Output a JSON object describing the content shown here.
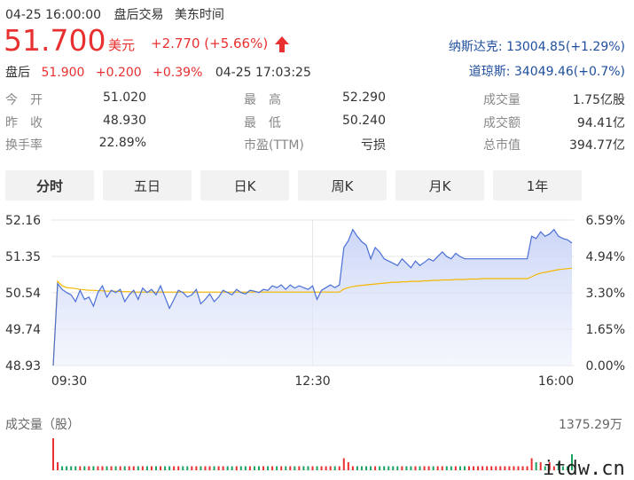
{
  "header": {
    "datetime": "04-25 16:00:00",
    "session": "盘后交易",
    "tz": "美东时间"
  },
  "quote": {
    "price": "51.700",
    "currency": "美元",
    "change": "+2.770 (+5.66%)"
  },
  "after_hours": {
    "label": "盘后",
    "price": "51.900",
    "change": "+0.200",
    "pct": "+0.39%",
    "time": "04-25 17:03:25"
  },
  "indices": [
    {
      "name": "纳斯达克:",
      "value": "13004.85(+1.29%)"
    },
    {
      "name": "道琼斯:",
      "value": "34049.46(+0.7%)"
    }
  ],
  "stats": {
    "col1": [
      {
        "label": "今　开",
        "value": "51.020",
        "red": true
      },
      {
        "label": "昨　收",
        "value": "48.930",
        "red": false
      },
      {
        "label": "换手率",
        "value": "22.89%",
        "red": false
      }
    ],
    "col2": [
      {
        "label": "最　高",
        "value": "52.290",
        "red": true
      },
      {
        "label": "最　低",
        "value": "50.240",
        "red": true
      },
      {
        "label": "市盈(TTM)",
        "value": "亏损",
        "red": false
      }
    ],
    "col3": [
      {
        "label": "成交量",
        "value": "1.75亿股"
      },
      {
        "label": "成交额",
        "value": "94.41亿"
      },
      {
        "label": "总市值",
        "value": "394.77亿"
      }
    ]
  },
  "tabs": [
    "分时",
    "五日",
    "日K",
    "周K",
    "月K",
    "1年"
  ],
  "volume": {
    "label": "成交量（股）",
    "max": "1375.29万"
  },
  "watermark": "itdw.cn",
  "chart_data": {
    "type": "line",
    "y_ticks": [
      "52.16",
      "51.35",
      "50.54",
      "49.74",
      "48.93"
    ],
    "y_pct_ticks": [
      "6.59%",
      "4.94%",
      "3.30%",
      "1.65%",
      "0.00%"
    ],
    "x_ticks": [
      "09:30",
      "12:30",
      "16:00"
    ],
    "ylim": [
      48.93,
      52.16
    ],
    "series": [
      {
        "name": "",
        "color": "#4a6fd6",
        "values": [
          48.93,
          50.75,
          50.62,
          50.55,
          50.5,
          50.35,
          50.6,
          50.4,
          50.45,
          50.25,
          50.55,
          50.7,
          50.45,
          50.6,
          50.55,
          50.62,
          50.35,
          50.5,
          50.6,
          50.4,
          50.65,
          50.55,
          50.62,
          50.5,
          50.7,
          50.45,
          50.2,
          50.4,
          50.6,
          50.55,
          50.45,
          50.5,
          50.62,
          50.3,
          50.4,
          50.52,
          50.35,
          50.45,
          50.6,
          50.55,
          50.5,
          50.62,
          50.55,
          50.52,
          50.6,
          50.58,
          50.55,
          50.62,
          50.6,
          50.7,
          50.66,
          50.72,
          50.62,
          50.72,
          50.65,
          50.7,
          50.66,
          50.62,
          50.7,
          50.4,
          50.6,
          50.66,
          50.72,
          50.66,
          50.72,
          51.55,
          51.7,
          51.95,
          51.8,
          51.68,
          51.6,
          51.3,
          51.55,
          51.45,
          51.3,
          51.25,
          51.2,
          51.15,
          51.3,
          51.2,
          51.1,
          51.25,
          51.15,
          51.22,
          51.3,
          51.25,
          51.35,
          51.45,
          51.35,
          51.3,
          51.42,
          51.35,
          51.3,
          51.3,
          51.3,
          51.3,
          51.3,
          51.3,
          51.3,
          51.3,
          51.3,
          51.3,
          51.3,
          51.3,
          51.3,
          51.3,
          51.3,
          51.8,
          51.75,
          51.9,
          51.8,
          51.85,
          51.95,
          51.8,
          51.75,
          51.72,
          51.65
        ]
      },
      {
        "name": "",
        "color": "#f5b700",
        "values": [
          48.93,
          50.8,
          50.7,
          50.66,
          50.65,
          50.64,
          50.62,
          50.61,
          50.6,
          50.6,
          50.59,
          50.59,
          50.58,
          50.58,
          50.58,
          50.57,
          50.57,
          50.57,
          50.56,
          50.56,
          50.56,
          50.56,
          50.56,
          50.56,
          50.56,
          50.56,
          50.56,
          50.56,
          50.56,
          50.56,
          50.56,
          50.56,
          50.56,
          50.56,
          50.56,
          50.56,
          50.56,
          50.56,
          50.56,
          50.56,
          50.56,
          50.56,
          50.56,
          50.56,
          50.56,
          50.56,
          50.56,
          50.56,
          50.56,
          50.56,
          50.56,
          50.56,
          50.56,
          50.56,
          50.56,
          50.56,
          50.56,
          50.56,
          50.56,
          50.56,
          50.56,
          50.56,
          50.56,
          50.56,
          50.56,
          50.63,
          50.66,
          50.68,
          50.7,
          50.71,
          50.72,
          50.73,
          50.74,
          50.75,
          50.76,
          50.77,
          50.78,
          50.78,
          50.79,
          50.79,
          50.8,
          50.8,
          50.8,
          50.81,
          50.81,
          50.82,
          50.82,
          50.83,
          50.83,
          50.83,
          50.84,
          50.84,
          50.84,
          50.85,
          50.85,
          50.85,
          50.86,
          50.86,
          50.86,
          50.86,
          50.86,
          50.86,
          50.86,
          50.86,
          50.86,
          50.86,
          50.86,
          50.9,
          50.95,
          50.98,
          51.0,
          51.02,
          51.04,
          51.06,
          51.07,
          51.08,
          51.09
        ]
      }
    ],
    "volume_bars": [
      8,
      2,
      1,
      1,
      1,
      1,
      1,
      1,
      1,
      1,
      1,
      1,
      1,
      1,
      1,
      1,
      1,
      1,
      1,
      1,
      1,
      1,
      1,
      1,
      1,
      1,
      1,
      1,
      1,
      1,
      1,
      1,
      1,
      1,
      1,
      1,
      1,
      1,
      1,
      1,
      1,
      1,
      1,
      1,
      1,
      1,
      1,
      1,
      1,
      1,
      1,
      1,
      1,
      1,
      1,
      1,
      1,
      1,
      1,
      1,
      1,
      1,
      1,
      1,
      1,
      3,
      2,
      1,
      1,
      1,
      1,
      1,
      1,
      1,
      1,
      1,
      1,
      1,
      1,
      1,
      1,
      1,
      1,
      1,
      1,
      1,
      1,
      1,
      1,
      1,
      1,
      1,
      1,
      1,
      1,
      1,
      1,
      1,
      1,
      1,
      1,
      1,
      1,
      1,
      1,
      1,
      1,
      3,
      2,
      2,
      1,
      2,
      1,
      2,
      1,
      1,
      4
    ]
  }
}
